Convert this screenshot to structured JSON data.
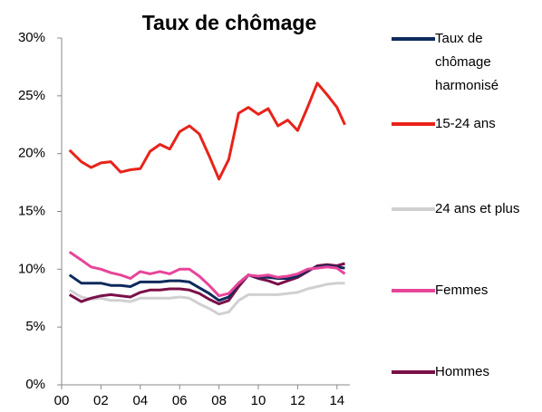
{
  "chart_data": {
    "type": "line",
    "title": "Taux de chômage",
    "x": [
      2000.4,
      2001,
      2001.5,
      2002,
      2002.5,
      2003,
      2003.5,
      2004,
      2004.5,
      2005,
      2005.5,
      2006,
      2006.5,
      2007,
      2007.5,
      2008,
      2008.5,
      2009,
      2009.5,
      2010,
      2010.5,
      2011,
      2011.5,
      2012,
      2012.5,
      2013,
      2013.5,
      2014,
      2014.4
    ],
    "series": [
      {
        "name": "Taux de chômage harmonisé",
        "color": "#0e2a5c",
        "values": [
          9.5,
          8.8,
          8.8,
          8.8,
          8.6,
          8.6,
          8.5,
          8.9,
          8.9,
          8.9,
          9.0,
          9.0,
          8.9,
          8.4,
          7.9,
          7.3,
          7.6,
          8.8,
          9.5,
          9.3,
          9.3,
          9.2,
          9.2,
          9.4,
          9.9,
          10.2,
          10.3,
          10.2,
          10.1
        ]
      },
      {
        "name": "15-24 ans",
        "color": "#e8231a",
        "values": [
          20.3,
          19.3,
          18.8,
          19.2,
          19.3,
          18.4,
          18.6,
          18.7,
          20.2,
          20.8,
          20.4,
          21.9,
          22.4,
          21.7,
          19.8,
          17.8,
          19.5,
          23.5,
          24.0,
          23.4,
          23.9,
          22.4,
          22.9,
          22.0,
          24.0,
          26.1,
          25.1,
          24.0,
          22.5
        ]
      },
      {
        "name": "24 ans et plus",
        "color": "#d2cfd3",
        "values": [
          8.2,
          7.6,
          7.4,
          7.5,
          7.3,
          7.3,
          7.2,
          7.5,
          7.5,
          7.5,
          7.5,
          7.6,
          7.5,
          7.0,
          6.6,
          6.1,
          6.3,
          7.3,
          7.8,
          7.8,
          7.8,
          7.8,
          7.9,
          8.0,
          8.3,
          8.5,
          8.7,
          8.8,
          8.8
        ]
      },
      {
        "name": "Femmes",
        "color": "#e8459a",
        "values": [
          11.5,
          10.8,
          10.2,
          10.0,
          9.7,
          9.5,
          9.2,
          9.8,
          9.6,
          9.8,
          9.6,
          10.0,
          10.0,
          9.4,
          8.6,
          7.7,
          7.9,
          8.8,
          9.5,
          9.4,
          9.5,
          9.3,
          9.4,
          9.6,
          10.0,
          10.1,
          10.2,
          10.1,
          9.6
        ]
      },
      {
        "name": "Hommes",
        "color": "#7a1048",
        "values": [
          7.8,
          7.2,
          7.5,
          7.7,
          7.8,
          7.7,
          7.6,
          8.0,
          8.2,
          8.2,
          8.3,
          8.3,
          8.2,
          7.9,
          7.4,
          7.0,
          7.3,
          8.5,
          9.5,
          9.2,
          9.0,
          8.7,
          9.0,
          9.3,
          9.8,
          10.3,
          10.4,
          10.3,
          10.5
        ]
      }
    ],
    "xlim": [
      2000,
      2014.7
    ],
    "xticks": [
      {
        "value": 2000,
        "label": "00"
      },
      {
        "value": 2002,
        "label": "02"
      },
      {
        "value": 2004,
        "label": "04"
      },
      {
        "value": 2006,
        "label": "06"
      },
      {
        "value": 2008,
        "label": "08"
      },
      {
        "value": 2010,
        "label": "10"
      },
      {
        "value": 2012,
        "label": "12"
      },
      {
        "value": 2014,
        "label": "14"
      }
    ],
    "ylim": [
      0,
      30
    ],
    "yticks": [
      {
        "value": 0,
        "label": "0%"
      },
      {
        "value": 5,
        "label": "5%"
      },
      {
        "value": 10,
        "label": "10%"
      },
      {
        "value": 15,
        "label": "15%"
      },
      {
        "value": 20,
        "label": "20%"
      },
      {
        "value": 25,
        "label": "25%"
      },
      {
        "value": 30,
        "label": "30%"
      }
    ],
    "grid": false,
    "legend": "right"
  }
}
